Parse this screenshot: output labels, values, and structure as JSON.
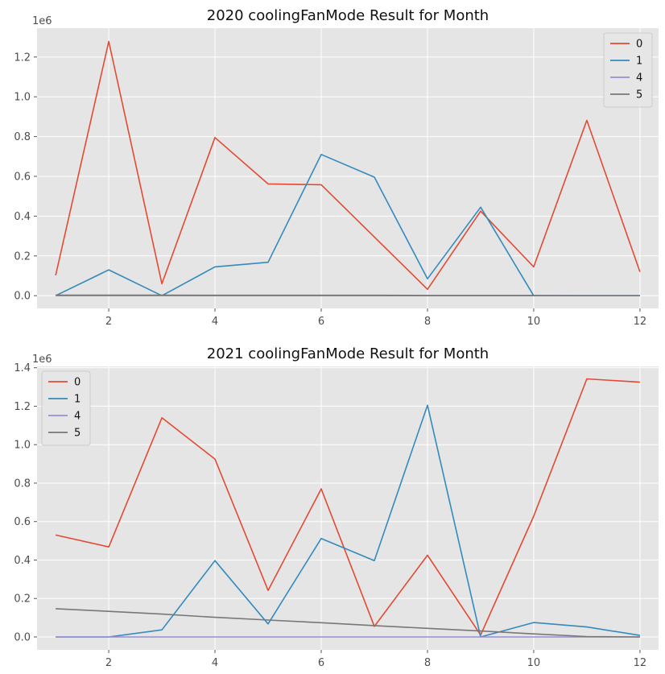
{
  "chart_data": [
    {
      "type": "line",
      "title": "2020 coolingFanMode Result for Month",
      "xlabel": "",
      "ylabel": "",
      "offset_label": "1e6",
      "xlim": [
        0.65,
        12.35
      ],
      "ylim": [
        -0.064,
        1.345
      ],
      "x_ticks": [
        2,
        4,
        6,
        8,
        10,
        12
      ],
      "y_ticks": [
        0,
        0.2,
        0.4,
        0.6,
        0.8,
        1.0,
        1.2
      ],
      "y_tick_labels": [
        "0.0",
        "0.2",
        "0.4",
        "0.6",
        "0.8",
        "1.0",
        "1.2"
      ],
      "grid": true,
      "legend_position": "top-right",
      "x": [
        1,
        2,
        3,
        4,
        5,
        6,
        7,
        8,
        9,
        10,
        11,
        12
      ],
      "series": [
        {
          "name": "0",
          "color": "#E24A33",
          "values": [
            0.102,
            1.278,
            0.06,
            0.795,
            0.562,
            0.558,
            0.295,
            0.032,
            0.425,
            0.145,
            0.882,
            0.12
          ]
        },
        {
          "name": "1",
          "color": "#348ABD",
          "values": [
            0.0,
            0.13,
            0.0,
            0.145,
            0.168,
            0.71,
            0.596,
            0.085,
            0.445,
            0.0,
            0.0,
            0.0
          ]
        },
        {
          "name": "4",
          "color": "#988ED5",
          "values": [
            0,
            0,
            0,
            0,
            0,
            0,
            0,
            0,
            0,
            0,
            0,
            0
          ]
        },
        {
          "name": "5",
          "color": "#777777",
          "values": [
            0.003,
            0.003,
            0.003,
            0.002,
            0.002,
            0.002,
            0.002,
            0.001,
            0.001,
            0.001,
            0.0,
            0.0
          ]
        }
      ]
    },
    {
      "type": "line",
      "title": "2021 coolingFanMode Result for Month",
      "xlabel": "",
      "ylabel": "",
      "offset_label": "1e6",
      "xlim": [
        0.65,
        12.35
      ],
      "ylim": [
        -0.067,
        1.407
      ],
      "x_ticks": [
        2,
        4,
        6,
        8,
        10,
        12
      ],
      "y_ticks": [
        0,
        0.2,
        0.4,
        0.6,
        0.8,
        1.0,
        1.2,
        1.4
      ],
      "y_tick_labels": [
        "0.0",
        "0.2",
        "0.4",
        "0.6",
        "0.8",
        "1.0",
        "1.2",
        "1.4"
      ],
      "grid": true,
      "legend_position": "top-left",
      "x": [
        1,
        2,
        3,
        4,
        5,
        6,
        7,
        8,
        9,
        10,
        11,
        12
      ],
      "series": [
        {
          "name": "0",
          "color": "#E24A33",
          "values": [
            0.53,
            0.468,
            1.14,
            0.925,
            0.242,
            0.77,
            0.055,
            0.425,
            0.01,
            0.628,
            1.342,
            1.325
          ]
        },
        {
          "name": "1",
          "color": "#348ABD",
          "values": [
            0.0,
            0.0,
            0.037,
            0.397,
            0.068,
            0.512,
            0.397,
            1.205,
            0.0,
            0.075,
            0.052,
            0.008
          ]
        },
        {
          "name": "4",
          "color": "#988ED5",
          "values": [
            0,
            0,
            0,
            0,
            0,
            0,
            0,
            0,
            0,
            0,
            0,
            0
          ]
        },
        {
          "name": "5",
          "color": "#777777",
          "values": [
            0.147,
            0.133,
            0.119,
            0.102,
            0.088,
            0.074,
            0.059,
            0.045,
            0.031,
            0.016,
            0.002,
            0.0
          ]
        }
      ]
    }
  ]
}
